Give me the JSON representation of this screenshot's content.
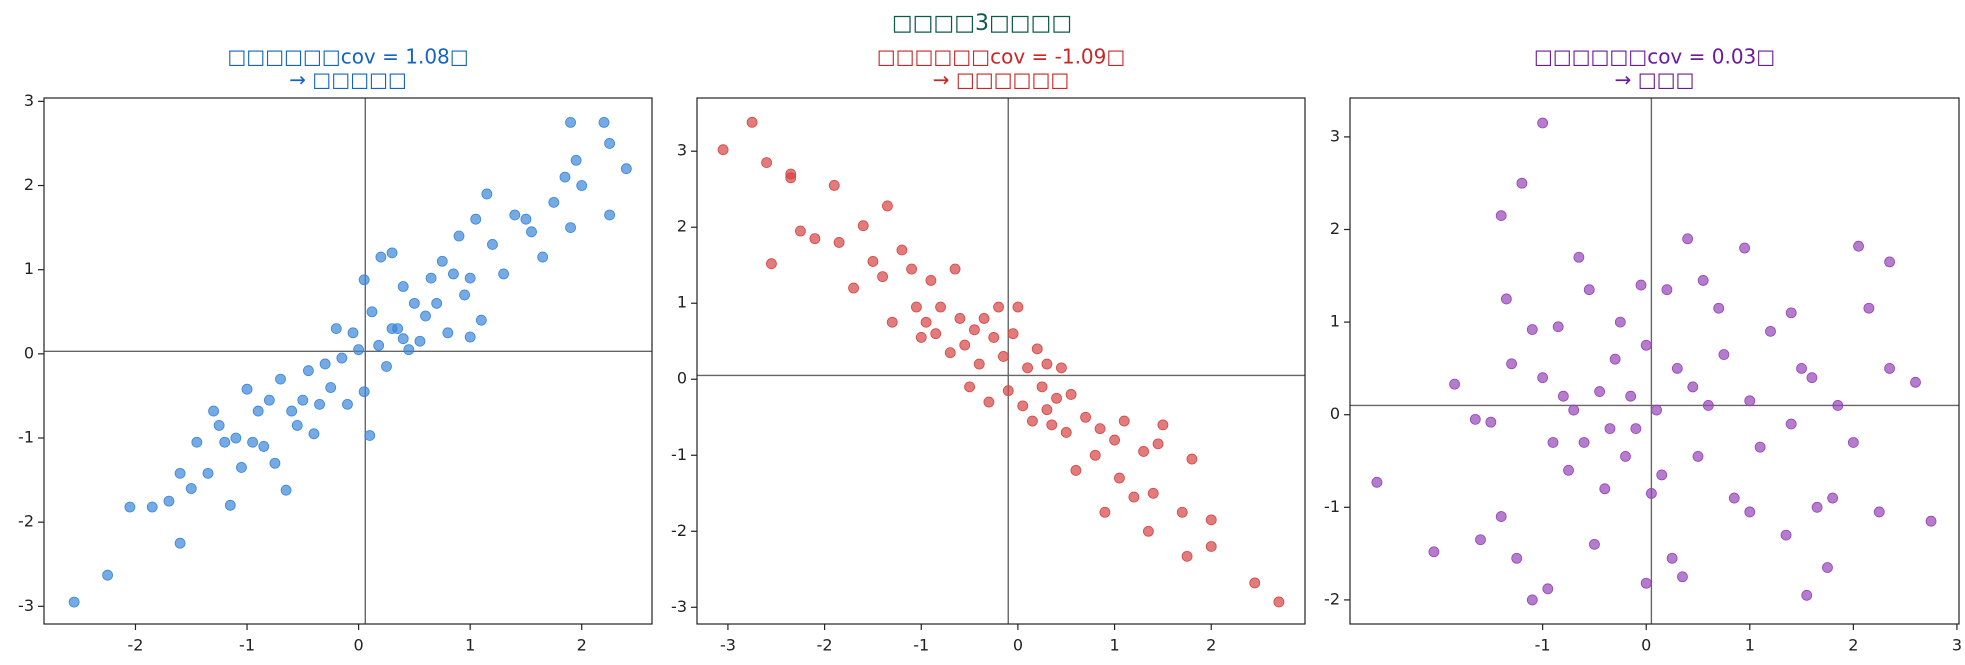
{
  "title": "□□□□3□□□□",
  "chart_data": [
    {
      "type": "scatter",
      "title": "□□□□□□cov = 1.08□",
      "subtitle": "→ □□□□□",
      "title_color": "#1565c0",
      "color": "#3b86d8",
      "xlim": [
        -2.82,
        2.63
      ],
      "ylim": [
        -3.21,
        3.04
      ],
      "xticks": [
        -2,
        -1,
        0,
        1,
        2
      ],
      "yticks": [
        -3,
        -2,
        -1,
        0,
        1,
        2,
        3
      ],
      "vline": 0.06,
      "hline": 0.03,
      "x": [
        -2.55,
        -2.25,
        -2.05,
        -1.85,
        -1.7,
        -1.6,
        -1.6,
        -1.5,
        -1.45,
        -1.35,
        -1.3,
        -1.25,
        -1.2,
        -1.15,
        -1.1,
        -1.05,
        -1.0,
        -0.95,
        -0.9,
        -0.85,
        -0.8,
        -0.75,
        -0.7,
        -0.65,
        -0.6,
        -0.55,
        -0.5,
        -0.45,
        -0.4,
        -0.35,
        -0.3,
        -0.25,
        -0.2,
        -0.15,
        -0.1,
        -0.05,
        0.0,
        0.05,
        0.05,
        0.1,
        0.12,
        0.18,
        0.2,
        0.25,
        0.3,
        0.35,
        0.4,
        0.4,
        0.45,
        0.5,
        0.55,
        0.6,
        0.65,
        0.7,
        0.75,
        0.8,
        0.85,
        0.9,
        0.95,
        1.0,
        1.05,
        1.1,
        1.15,
        1.2,
        1.3,
        1.4,
        1.5,
        1.55,
        1.65,
        1.75,
        1.85,
        1.9,
        1.9,
        2.0,
        2.2,
        2.25,
        2.4,
        2.25,
        1.95,
        1.0,
        0.3
      ],
      "y": [
        -2.95,
        -2.63,
        -1.82,
        -1.82,
        -1.75,
        -2.25,
        -1.42,
        -1.6,
        -1.05,
        -1.42,
        -0.68,
        -0.85,
        -1.05,
        -1.8,
        -1.0,
        -1.35,
        -0.42,
        -1.05,
        -0.68,
        -1.1,
        -0.55,
        -1.3,
        -0.3,
        -1.62,
        -0.68,
        -0.85,
        -0.55,
        -0.2,
        -0.95,
        -0.6,
        -0.12,
        -0.4,
        0.3,
        -0.05,
        -0.6,
        0.25,
        0.05,
        0.88,
        -0.45,
        -0.97,
        0.5,
        0.1,
        1.15,
        -0.15,
        1.2,
        0.3,
        0.8,
        0.18,
        0.05,
        0.6,
        0.15,
        0.45,
        0.9,
        0.6,
        1.1,
        0.25,
        0.95,
        1.4,
        0.7,
        0.9,
        1.6,
        0.4,
        1.9,
        1.3,
        0.95,
        1.65,
        1.6,
        1.45,
        1.15,
        1.8,
        2.1,
        1.5,
        2.75,
        2.0,
        2.75,
        1.65,
        2.2,
        2.5,
        2.3,
        0.2,
        0.3
      ]
    },
    {
      "type": "scatter",
      "title": "□□□□□□cov = -1.09□",
      "subtitle": "→ □□□□□□",
      "title_color": "#c62828",
      "color": "#d64545",
      "xlim": [
        -3.32,
        2.97
      ],
      "ylim": [
        -3.22,
        3.7
      ],
      "xticks": [
        -3,
        -2,
        -1,
        0,
        1,
        2
      ],
      "yticks": [
        -3,
        -2,
        -1,
        0,
        1,
        2,
        3
      ],
      "vline": -0.1,
      "hline": 0.05,
      "x": [
        -3.05,
        -2.75,
        -2.6,
        -2.55,
        -2.35,
        -2.35,
        -2.25,
        -2.1,
        -1.9,
        -1.85,
        -1.7,
        -1.6,
        -1.5,
        -1.4,
        -1.35,
        -1.3,
        -1.2,
        -1.1,
        -1.05,
        -1.0,
        -0.95,
        -0.9,
        -0.85,
        -0.8,
        -0.7,
        -0.65,
        -0.6,
        -0.55,
        -0.5,
        -0.45,
        -0.4,
        -0.35,
        -0.3,
        -0.25,
        -0.2,
        -0.15,
        -0.1,
        -0.05,
        0.0,
        0.05,
        0.1,
        0.15,
        0.2,
        0.25,
        0.3,
        0.35,
        0.4,
        0.45,
        0.5,
        0.55,
        0.6,
        0.7,
        0.8,
        0.85,
        0.9,
        1.0,
        1.05,
        1.1,
        1.2,
        1.3,
        1.35,
        1.45,
        1.5,
        1.7,
        1.75,
        1.8,
        2.0,
        2.0,
        2.45,
        2.7,
        1.4,
        0.3
      ],
      "y": [
        3.02,
        3.38,
        2.85,
        1.52,
        2.65,
        2.7,
        1.95,
        1.85,
        2.55,
        1.8,
        1.2,
        2.02,
        1.55,
        1.35,
        2.28,
        0.75,
        1.7,
        1.45,
        0.95,
        0.55,
        0.75,
        1.3,
        0.6,
        0.95,
        0.35,
        1.45,
        0.8,
        0.45,
        -0.1,
        0.65,
        0.2,
        0.8,
        -0.3,
        0.55,
        0.95,
        0.3,
        -0.15,
        0.6,
        0.95,
        -0.35,
        0.15,
        -0.55,
        0.4,
        -0.1,
        0.2,
        -0.6,
        -0.25,
        0.15,
        -0.7,
        -0.2,
        -1.2,
        -0.5,
        -1.0,
        -0.65,
        -1.75,
        -0.8,
        -1.3,
        -0.55,
        -1.55,
        -0.95,
        -2.0,
        -0.85,
        -0.6,
        -1.75,
        -2.33,
        -1.05,
        -1.85,
        -2.2,
        -2.68,
        -2.93,
        -1.5,
        -0.4
      ]
    },
    {
      "type": "scatter",
      "title": "□□□□□□cov = 0.03□",
      "subtitle": "→ □□□",
      "title_color": "#6a1b9a",
      "color": "#9545b8",
      "xlim": [
        -2.86,
        3.02
      ],
      "ylim": [
        -2.26,
        3.42
      ],
      "xticks": [
        -1,
        0,
        1,
        2,
        3
      ],
      "yticks": [
        -2,
        -1,
        0,
        1,
        2,
        3
      ],
      "vline": 0.05,
      "hline": 0.1,
      "x": [
        -2.6,
        -2.05,
        -1.85,
        -1.65,
        -1.6,
        -1.5,
        -1.4,
        -1.4,
        -1.35,
        -1.3,
        -1.25,
        -1.2,
        -1.1,
        -1.1,
        -1.0,
        -1.0,
        -0.95,
        -0.9,
        -0.85,
        -0.8,
        -0.75,
        -0.7,
        -0.65,
        -0.6,
        -0.55,
        -0.5,
        -0.45,
        -0.4,
        -0.35,
        -0.3,
        -0.25,
        -0.2,
        -0.15,
        -0.1,
        -0.05,
        0.0,
        0.0,
        0.05,
        0.1,
        0.15,
        0.2,
        0.25,
        0.3,
        0.35,
        0.4,
        0.45,
        0.5,
        0.55,
        0.6,
        0.7,
        0.75,
        0.85,
        0.95,
        1.0,
        1.0,
        1.1,
        1.2,
        1.35,
        1.4,
        1.4,
        1.5,
        1.55,
        1.6,
        1.65,
        1.75,
        1.8,
        1.85,
        2.0,
        2.05,
        2.15,
        2.25,
        2.35,
        2.35,
        2.6,
        2.75
      ],
      "y": [
        -0.73,
        -1.48,
        0.33,
        -0.05,
        -1.35,
        -0.08,
        -1.1,
        2.15,
        1.25,
        0.55,
        -1.55,
        2.5,
        -2.0,
        0.92,
        3.15,
        0.4,
        -1.88,
        -0.3,
        0.95,
        0.2,
        -0.6,
        0.05,
        1.7,
        -0.3,
        1.35,
        -1.4,
        0.25,
        -0.8,
        -0.15,
        0.6,
        1.0,
        -0.45,
        0.2,
        -0.15,
        1.4,
        -1.82,
        0.75,
        -0.85,
        0.05,
        -0.65,
        1.35,
        -1.55,
        0.5,
        -1.75,
        1.9,
        0.3,
        -0.45,
        1.45,
        0.1,
        1.15,
        0.65,
        -0.9,
        1.8,
        -1.05,
        0.15,
        -0.35,
        0.9,
        -1.3,
        1.1,
        -0.1,
        0.5,
        -1.95,
        0.4,
        -1.0,
        -1.65,
        -0.9,
        0.1,
        -0.3,
        1.82,
        1.15,
        -1.05,
        1.65,
        0.5,
        0.35,
        -1.15
      ]
    }
  ]
}
